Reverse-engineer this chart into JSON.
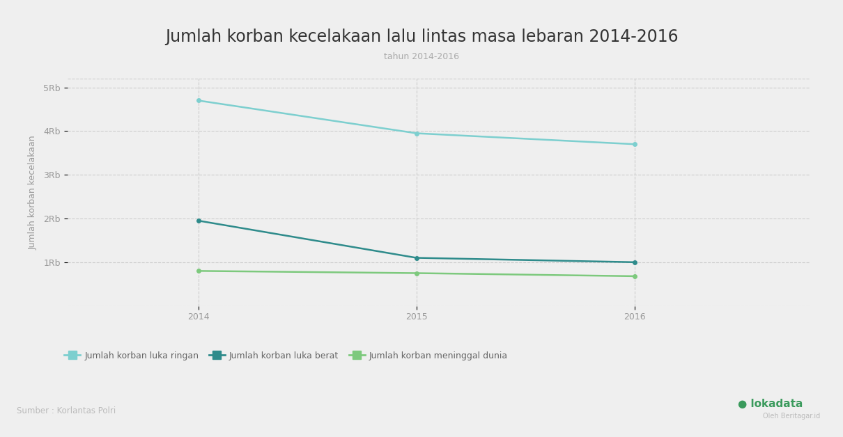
{
  "title": "Jumlah korban kecelakaan lalu lintas masa lebaran 2014-2016",
  "subtitle": "tahun 2014-2016",
  "ylabel": "Jumlah korban kecelakaan",
  "source": "Sumber : Korlantas Polri",
  "years": [
    2014,
    2015,
    2016
  ],
  "series": [
    {
      "label": "Jumlah korban luka ringan",
      "values": [
        4700,
        3950,
        3700
      ],
      "color": "#7DCFCF",
      "linewidth": 1.8
    },
    {
      "label": "Jumlah korban luka berat",
      "values": [
        1950,
        1100,
        1000
      ],
      "color": "#2E8B8B",
      "linewidth": 1.8
    },
    {
      "label": "Jumlah korban meninggal dunia",
      "values": [
        800,
        750,
        680
      ],
      "color": "#7DC97D",
      "linewidth": 1.8
    }
  ],
  "ylim": [
    0,
    5200
  ],
  "yticks": [
    1000,
    2000,
    3000,
    4000,
    5000
  ],
  "ytick_labels": [
    "1Rb",
    "2Rb",
    "3Rb",
    "4Rb",
    "5Rb"
  ],
  "background_color": "#EFEFEF",
  "plot_background": "#EFEFEF",
  "grid_color": "#CCCCCC",
  "title_fontsize": 17,
  "subtitle_fontsize": 9,
  "axis_label_fontsize": 9,
  "tick_fontsize": 9,
  "legend_fontsize": 9,
  "marker": "o",
  "marker_size": 4
}
